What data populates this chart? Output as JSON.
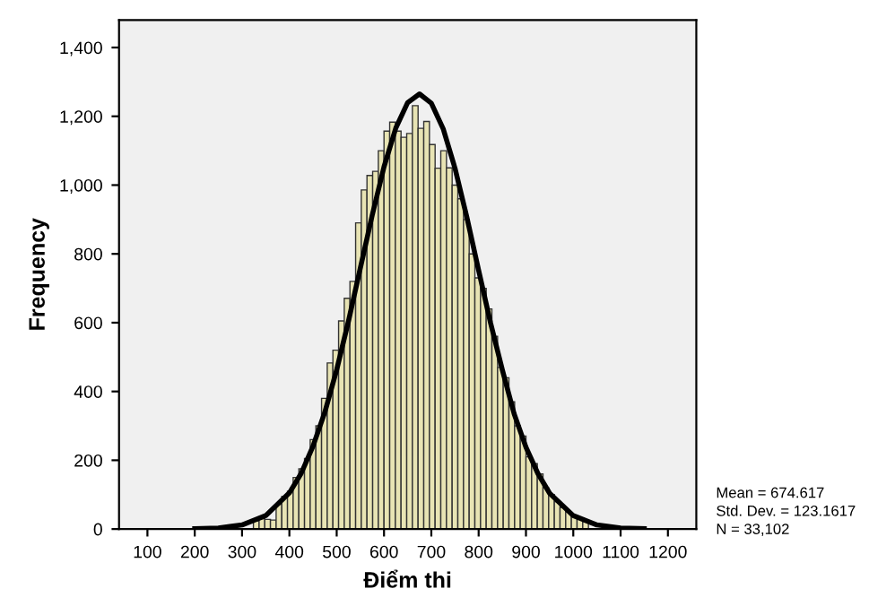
{
  "chart_data": {
    "type": "histogram",
    "xlabel": "Điểm thi",
    "ylabel": "Frequency",
    "bins": [
      228,
      240,
      252,
      264,
      276,
      288,
      300,
      312,
      324,
      336,
      348,
      360,
      372,
      384,
      396,
      408,
      420,
      432,
      444,
      456,
      468,
      480,
      492,
      504,
      516,
      528,
      540,
      552,
      564,
      576,
      588,
      600,
      612,
      624,
      636,
      648,
      660,
      672,
      684,
      696,
      708,
      720,
      732,
      744,
      756,
      768,
      780,
      792,
      804,
      816,
      828,
      840,
      852,
      864,
      876,
      888,
      900,
      912,
      924,
      936,
      948,
      960,
      972,
      984,
      996,
      1008,
      1020,
      1032,
      1044,
      1056,
      1068,
      1080,
      1092,
      1104,
      1116,
      1128
    ],
    "values": [
      2,
      3,
      4,
      5,
      null,
      null,
      null,
      null,
      24,
      30,
      28,
      26,
      72,
      95,
      110,
      150,
      175,
      205,
      260,
      300,
      380,
      483,
      520,
      605,
      671,
      720,
      890,
      986,
      1028,
      1040,
      1100,
      1157,
      1183,
      1157,
      1139,
      1150,
      1231,
      1165,
      1185,
      1118,
      1049,
      1100,
      1050,
      1000,
      960,
      900,
      800,
      730,
      700,
      640,
      560,
      470,
      440,
      370,
      300,
      270,
      210,
      190,
      160,
      120,
      100,
      80,
      62,
      50,
      38,
      28,
      22,
      null,
      null,
      null,
      7,
      5,
      3,
      2,
      2
    ],
    "color": "#e8e4b4",
    "series": [
      {
        "type": "line",
        "color": "#000000",
        "x": [
          200,
          250,
          300,
          350,
          400,
          425,
          450,
          475,
          500,
          525,
          550,
          575,
          600,
          625,
          650,
          675,
          700,
          725,
          750,
          775,
          800,
          825,
          850,
          875,
          900,
          925,
          950,
          1000,
          1050,
          1100,
          1150
        ],
        "values": [
          1,
          3,
          12,
          39,
          105,
          162,
          241,
          340,
          463,
          605,
          759,
          912,
          1053,
          1166,
          1240,
          1265,
          1238,
          1164,
          1049,
          907,
          752,
          600,
          463,
          335,
          238,
          162,
          104,
          39,
          12,
          3,
          1
        ]
      }
    ],
    "xlim": [
      40,
      1260
    ],
    "ylim": [
      0,
      1480
    ],
    "xticks": [
      100,
      200,
      300,
      400,
      500,
      600,
      700,
      800,
      900,
      1000,
      1100,
      1200
    ],
    "yticks": [
      0,
      200,
      400,
      600,
      800,
      {
        "value": 1000,
        "label": "1,000"
      },
      {
        "value": 1200,
        "label": "1,200"
      },
      {
        "value": 1400,
        "label": "1,400"
      }
    ],
    "grid": false,
    "annotations": [
      "Mean = 674.617",
      "Std. Dev. = 123.1617",
      "N = 33,102"
    ]
  }
}
